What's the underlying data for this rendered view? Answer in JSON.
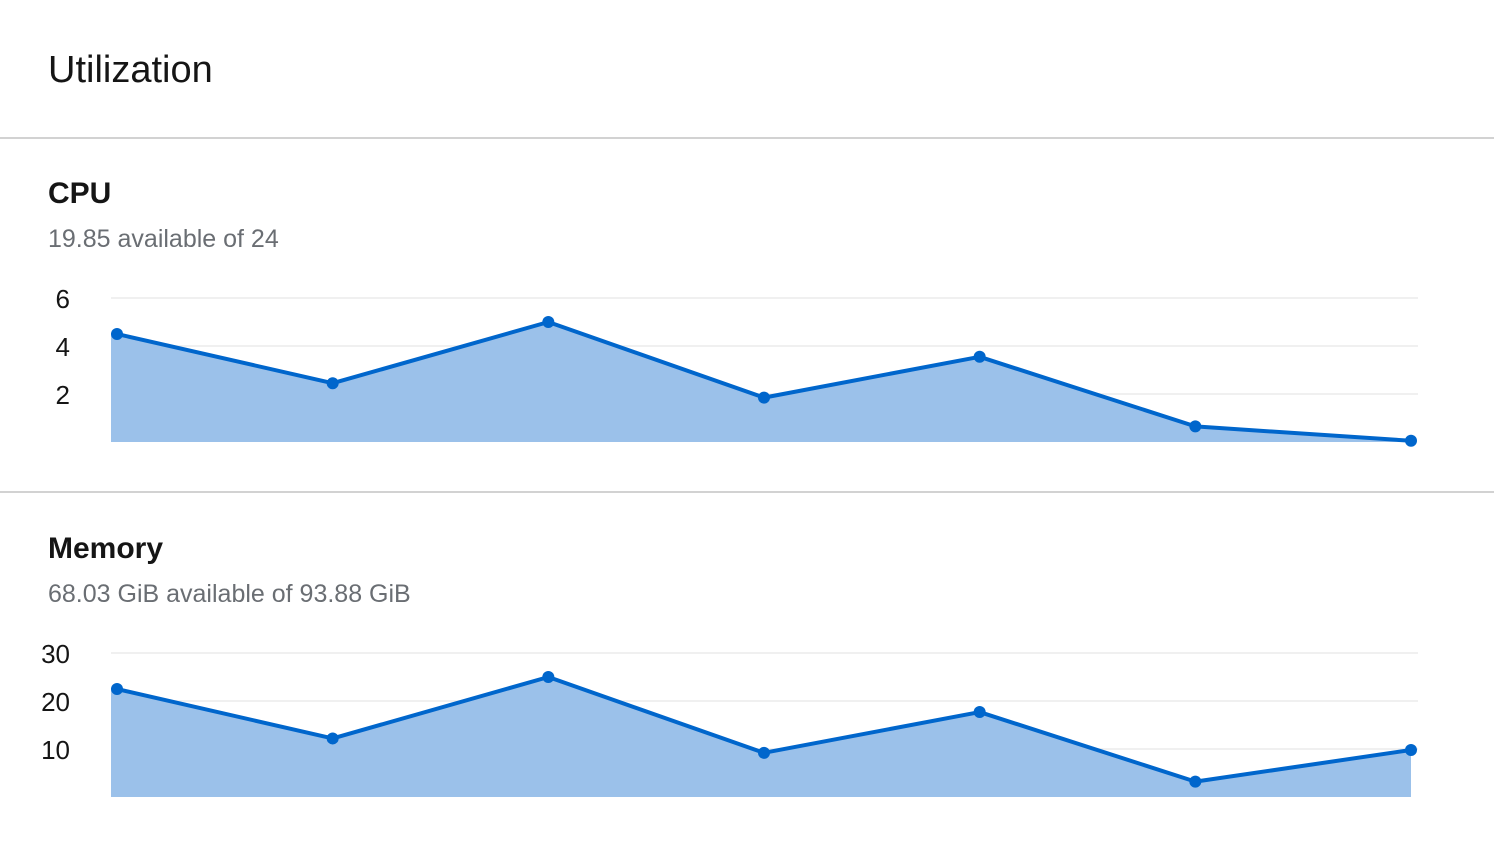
{
  "card": {
    "title": "Utilization"
  },
  "colors": {
    "line": "#0066cc",
    "area": "#9bc1ea",
    "grid": "#ececec",
    "divider": "#d2d2d2"
  },
  "cpu": {
    "title": "CPU",
    "subtitle": "19.85 available of 24"
  },
  "memory": {
    "title": "Memory",
    "subtitle": "68.03 GiB available of 93.88 GiB"
  },
  "chart_data": [
    {
      "type": "area",
      "title": "CPU",
      "x": [
        1,
        2,
        3,
        4,
        5,
        6,
        7
      ],
      "values": [
        4.5,
        2.45,
        5.0,
        1.85,
        3.55,
        0.65,
        0.05
      ],
      "ylim": [
        0,
        6
      ],
      "yticks": [
        "2",
        "4",
        "6"
      ],
      "ytick_values": [
        2,
        4,
        6
      ],
      "grid": true,
      "legend": "none"
    },
    {
      "type": "area",
      "title": "Memory",
      "x": [
        1,
        2,
        3,
        4,
        5,
        6,
        7
      ],
      "values": [
        22.5,
        12.2,
        25.0,
        9.2,
        17.7,
        3.2,
        9.8
      ],
      "ylim": [
        0,
        30
      ],
      "yticks": [
        "10",
        "20",
        "30"
      ],
      "ytick_values": [
        10,
        20,
        30
      ],
      "grid": true,
      "legend": "none"
    }
  ]
}
